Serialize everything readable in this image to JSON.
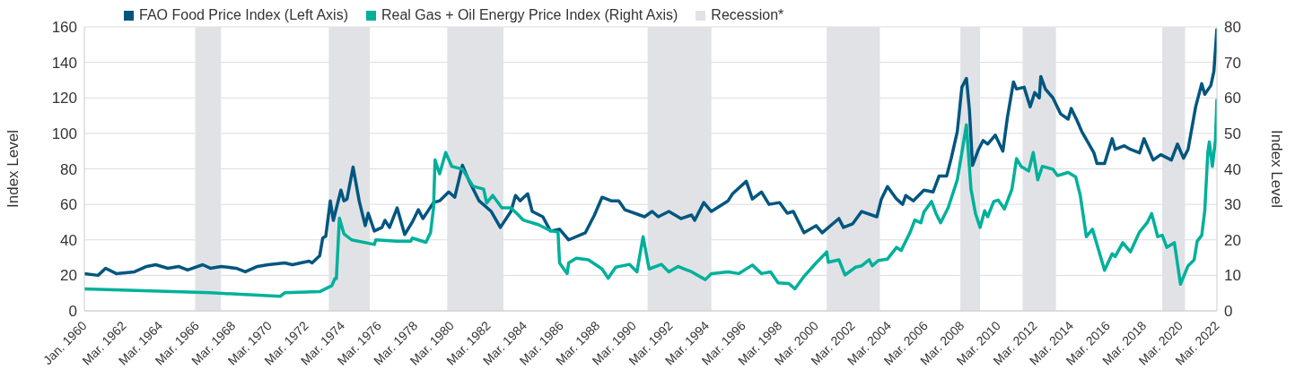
{
  "chart_data": {
    "type": "line",
    "ylabel": "Index Level",
    "y2label": "Index Level",
    "xlim": [
      "1960-01",
      "2022-03"
    ],
    "xticks": [
      {
        "value": "1960-01",
        "label": "Jan. 1960"
      },
      {
        "value": "1962-03",
        "label": "Mar. 1962"
      },
      {
        "value": "1964-03",
        "label": "Mar. 1964"
      },
      {
        "value": "1966-03",
        "label": "Mar. 1966"
      },
      {
        "value": "1968-03",
        "label": "Mar. 1968"
      },
      {
        "value": "1970-03",
        "label": "Mar. 1970"
      },
      {
        "value": "1972-03",
        "label": "Mar. 1972"
      },
      {
        "value": "1974-03",
        "label": "Mar. 1974"
      },
      {
        "value": "1976-03",
        "label": "Mar. 1976"
      },
      {
        "value": "1978-03",
        "label": "Mar. 1978"
      },
      {
        "value": "1980-03",
        "label": "Mar. 1980"
      },
      {
        "value": "1982-03",
        "label": "Mar. 1982"
      },
      {
        "value": "1984-03",
        "label": "Mar. 1984"
      },
      {
        "value": "1986-03",
        "label": "Mar. 1986"
      },
      {
        "value": "1988-03",
        "label": "Mar. 1988"
      },
      {
        "value": "1990-03",
        "label": "Mar. 1990"
      },
      {
        "value": "1992-03",
        "label": "Mar. 1992"
      },
      {
        "value": "1994-03",
        "label": "Mar. 1994"
      },
      {
        "value": "1996-03",
        "label": "Mar. 1996"
      },
      {
        "value": "1998-03",
        "label": "Mar. 1998"
      },
      {
        "value": "2000-03",
        "label": "Mar. 2000"
      },
      {
        "value": "2002-03",
        "label": "Mar. 2002"
      },
      {
        "value": "2004-03",
        "label": "Mar. 2004"
      },
      {
        "value": "2006-03",
        "label": "Mar. 2006"
      },
      {
        "value": "2008-03",
        "label": "Mar. 2008"
      },
      {
        "value": "2010-03",
        "label": "Mar. 2010"
      },
      {
        "value": "2012-03",
        "label": "Mar. 2012"
      },
      {
        "value": "2014-03",
        "label": "Mar. 2014"
      },
      {
        "value": "2016-03",
        "label": "Mar. 2016"
      },
      {
        "value": "2018-03",
        "label": "Mar. 2018"
      },
      {
        "value": "2020-03",
        "label": "Mar. 2020"
      },
      {
        "value": "2022-03",
        "label": "Mar. 2022"
      }
    ],
    "ylim": [
      0,
      160
    ],
    "yticks": [
      0,
      20,
      40,
      60,
      80,
      100,
      120,
      140,
      160
    ],
    "y2lim": [
      0,
      80
    ],
    "y2ticks": [
      0,
      10,
      20,
      30,
      40,
      50,
      60,
      70,
      80
    ],
    "grid": "y",
    "legend": "top left",
    "marker": "none",
    "series": [
      {
        "name": "FAO Food Price Index (Left Axis)",
        "color": "#00567f",
        "x": [
          "1960-01",
          "1960-10",
          "1961-03",
          "1961-10",
          "1962-10",
          "1963-06",
          "1963-12",
          "1964-08",
          "1965-03",
          "1965-09",
          "1966-07",
          "1966-12",
          "1967-07",
          "1968-05",
          "1968-11",
          "1969-07",
          "1970-02",
          "1971-01",
          "1971-06",
          "1972-05",
          "1972-07",
          "1972-12",
          "1973-02",
          "1973-04",
          "1973-07",
          "1973-09",
          "1974-02",
          "1974-04",
          "1974-06",
          "1974-08",
          "1974-10",
          "1975-02",
          "1975-06",
          "1975-08",
          "1975-12",
          "1976-05",
          "1976-07",
          "1976-10",
          "1977-03",
          "1977-08",
          "1978-01",
          "1978-05",
          "1978-08",
          "1979-03",
          "1979-07",
          "1980-01",
          "1980-05",
          "1980-10",
          "1981-02",
          "1981-09",
          "1982-05",
          "1982-11",
          "1983-06",
          "1983-09",
          "1983-12",
          "1984-05",
          "1984-08",
          "1985-03",
          "1985-08",
          "1986-02",
          "1986-08",
          "1987-07",
          "1988-01",
          "1988-06",
          "1988-12",
          "1989-05",
          "1989-09",
          "1990-10",
          "1991-03",
          "1991-07",
          "1992-02",
          "1992-10",
          "1993-05",
          "1993-07",
          "1994-01",
          "1994-06",
          "1995-05",
          "1995-08",
          "1996-05",
          "1996-09",
          "1997-03",
          "1997-08",
          "1998-03",
          "1998-08",
          "1998-12",
          "1999-07",
          "2000-03",
          "2000-07",
          "2001-06",
          "2001-09",
          "2002-03",
          "2002-09",
          "2003-07",
          "2003-10",
          "2004-02",
          "2004-08",
          "2004-12",
          "2005-02",
          "2005-07",
          "2006-02",
          "2006-08",
          "2006-12",
          "2007-05",
          "2007-08",
          "2007-12",
          "2008-03",
          "2008-06",
          "2008-08",
          "2008-10",
          "2009-02",
          "2009-05",
          "2009-08",
          "2010-01",
          "2010-06",
          "2010-09",
          "2011-01",
          "2011-03",
          "2011-08",
          "2011-12",
          "2012-03",
          "2012-06",
          "2012-07",
          "2012-10",
          "2013-03",
          "2013-08",
          "2014-01",
          "2014-03",
          "2014-07",
          "2014-10",
          "2015-06",
          "2015-08",
          "2016-01",
          "2016-06",
          "2016-08",
          "2017-02",
          "2017-06",
          "2017-12",
          "2018-03",
          "2018-09",
          "2019-02",
          "2019-09",
          "2020-01",
          "2020-05",
          "2020-08",
          "2021-01",
          "2021-05",
          "2021-07",
          "2021-11",
          "2022-01",
          "2022-03"
        ],
        "values": [
          21,
          20,
          24,
          21,
          22,
          25,
          26,
          24,
          25,
          23,
          26,
          24,
          25,
          24,
          22,
          25,
          26,
          27,
          26,
          28,
          27,
          31,
          41,
          42,
          62,
          51,
          68,
          62,
          63,
          72,
          81,
          62,
          48,
          55,
          45,
          47,
          51,
          47,
          58,
          43,
          50,
          57,
          52,
          61,
          62,
          67,
          64,
          82,
          74,
          62,
          56,
          47,
          56,
          65,
          62,
          66,
          56,
          53,
          45,
          46,
          40,
          44,
          54,
          64,
          62,
          62,
          57,
          53,
          56,
          53,
          56,
          52,
          54,
          51,
          61,
          56,
          62,
          66,
          73,
          63,
          67,
          60,
          61,
          55,
          56,
          44,
          48,
          44,
          52,
          47,
          49,
          56,
          53,
          63,
          70,
          63,
          60,
          65,
          62,
          68,
          67,
          76,
          76,
          86,
          101,
          126,
          131,
          113,
          82,
          91,
          96,
          94,
          99,
          90,
          109,
          129,
          125,
          126,
          115,
          123,
          120,
          132,
          125,
          120,
          111,
          108,
          114,
          107,
          101,
          89,
          83,
          83,
          97,
          91,
          93,
          91,
          89,
          97,
          85,
          88,
          85,
          94,
          86,
          91,
          115,
          128,
          122,
          127,
          135,
          159
        ]
      },
      {
        "name": "Real Gas + Oil Energy Price Index (Right Axis)",
        "color": "#00b09b",
        "axis": "y2",
        "x": [
          "1960-01",
          "1966-12",
          "1970-10",
          "1971-01",
          "1972-12",
          "1973-08",
          "1973-10",
          "1973-11",
          "1974-01",
          "1974-04",
          "1974-09",
          "1975-12",
          "1976-01",
          "1977-03",
          "1977-12",
          "1978-01",
          "1978-10",
          "1979-01",
          "1979-03",
          "1979-04",
          "1979-07",
          "1979-11",
          "1980-03",
          "1980-10",
          "1981-05",
          "1981-12",
          "1982-02",
          "1982-06",
          "1982-12",
          "1983-06",
          "1983-10",
          "1984-02",
          "1984-12",
          "1985-08",
          "1986-01",
          "1986-02",
          "1986-07",
          "1986-08",
          "1987-01",
          "1987-09",
          "1988-06",
          "1988-10",
          "1989-03",
          "1989-12",
          "1990-05",
          "1990-09",
          "1991-01",
          "1991-09",
          "1992-02",
          "1992-08",
          "1993-05",
          "1994-02",
          "1994-06",
          "1995-05",
          "1995-12",
          "1996-09",
          "1997-03",
          "1997-09",
          "1998-02",
          "1998-09",
          "1999-01",
          "1999-07",
          "2000-03",
          "2000-10",
          "2000-11",
          "2001-06",
          "2001-10",
          "2002-05",
          "2002-09",
          "2003-02",
          "2003-04",
          "2003-08",
          "2004-02",
          "2004-08",
          "2004-11",
          "2005-05",
          "2005-08",
          "2005-12",
          "2006-02",
          "2006-07",
          "2006-10",
          "2007-01",
          "2007-06",
          "2007-12",
          "2008-03",
          "2008-06",
          "2008-09",
          "2008-12",
          "2009-03",
          "2009-06",
          "2009-08",
          "2009-12",
          "2010-03",
          "2010-07",
          "2010-12",
          "2011-03",
          "2011-06",
          "2011-11",
          "2012-02",
          "2012-05",
          "2012-08",
          "2013-03",
          "2013-06",
          "2014-01",
          "2014-06",
          "2014-09",
          "2015-01",
          "2015-05",
          "2015-08",
          "2016-01",
          "2016-06",
          "2016-08",
          "2017-01",
          "2017-06",
          "2017-12",
          "2018-05",
          "2018-08",
          "2018-12",
          "2019-03",
          "2019-06",
          "2019-11",
          "2020-03",
          "2020-08",
          "2020-12",
          "2021-02",
          "2021-05",
          "2021-07",
          "2021-09",
          "2021-10",
          "2021-12",
          "2022-02",
          "2022-03"
        ],
        "values": [
          6.2,
          5.1,
          4.1,
          5.1,
          5.4,
          7.1,
          9.1,
          9.1,
          26.1,
          21.7,
          20,
          18.7,
          20,
          19.6,
          19.6,
          20.5,
          19.3,
          22,
          29,
          42.5,
          38.6,
          44.6,
          40.7,
          39.9,
          35.1,
          34.3,
          30.4,
          32.5,
          29,
          29,
          27.4,
          25.6,
          24.3,
          22.6,
          22.2,
          13.5,
          10.5,
          13.5,
          14.8,
          14.4,
          11.8,
          9.2,
          12.3,
          13.1,
          11,
          20.9,
          11.8,
          13.1,
          11,
          12.5,
          11,
          8.8,
          10.5,
          11,
          10.5,
          12.9,
          10.5,
          11,
          7.9,
          7.7,
          6.2,
          9.7,
          13.5,
          16.6,
          13.7,
          14.4,
          10.1,
          12.3,
          12.7,
          14.4,
          12.7,
          14.2,
          14.6,
          17.9,
          17,
          22.2,
          25.6,
          24.8,
          27.8,
          30.8,
          27.4,
          24.8,
          29.1,
          36.9,
          44.6,
          52.4,
          34.3,
          27.4,
          23.5,
          28.2,
          26.5,
          30.8,
          31.2,
          28.7,
          34.3,
          42.9,
          40.7,
          39.4,
          44.6,
          36.9,
          40.7,
          39.9,
          38.1,
          39,
          37.7,
          32.5,
          20.9,
          23,
          18.7,
          11.4,
          16.1,
          15.3,
          19.2,
          16.6,
          22.2,
          24.8,
          27.4,
          20.9,
          21.3,
          17.9,
          19.2,
          7.5,
          12.7,
          14.4,
          19.6,
          21.3,
          28.2,
          44.6,
          47.6,
          40.7,
          48,
          59.7
        ]
      }
    ],
    "bands": [
      {
        "axis": "x",
        "from": "1966-02",
        "to": "1967-07",
        "label": "Recession*",
        "color": "#e1e2e6"
      },
      {
        "axis": "x",
        "from": "1973-06",
        "to": "1975-09",
        "color": "#e1e2e6"
      },
      {
        "axis": "x",
        "from": "1979-12",
        "to": "1983-01",
        "color": "#e1e2e6"
      },
      {
        "axis": "x",
        "from": "1990-12",
        "to": "1994-06",
        "color": "#e1e2e6"
      },
      {
        "axis": "x",
        "from": "2000-10",
        "to": "2003-09",
        "color": "#e1e2e6"
      },
      {
        "axis": "x",
        "from": "2008-02",
        "to": "2009-03",
        "color": "#e1e2e6"
      },
      {
        "axis": "x",
        "from": "2011-07",
        "to": "2013-05",
        "color": "#e1e2e6"
      },
      {
        "axis": "x",
        "from": "2019-03",
        "to": "2020-06",
        "color": "#e1e2e6"
      }
    ]
  }
}
